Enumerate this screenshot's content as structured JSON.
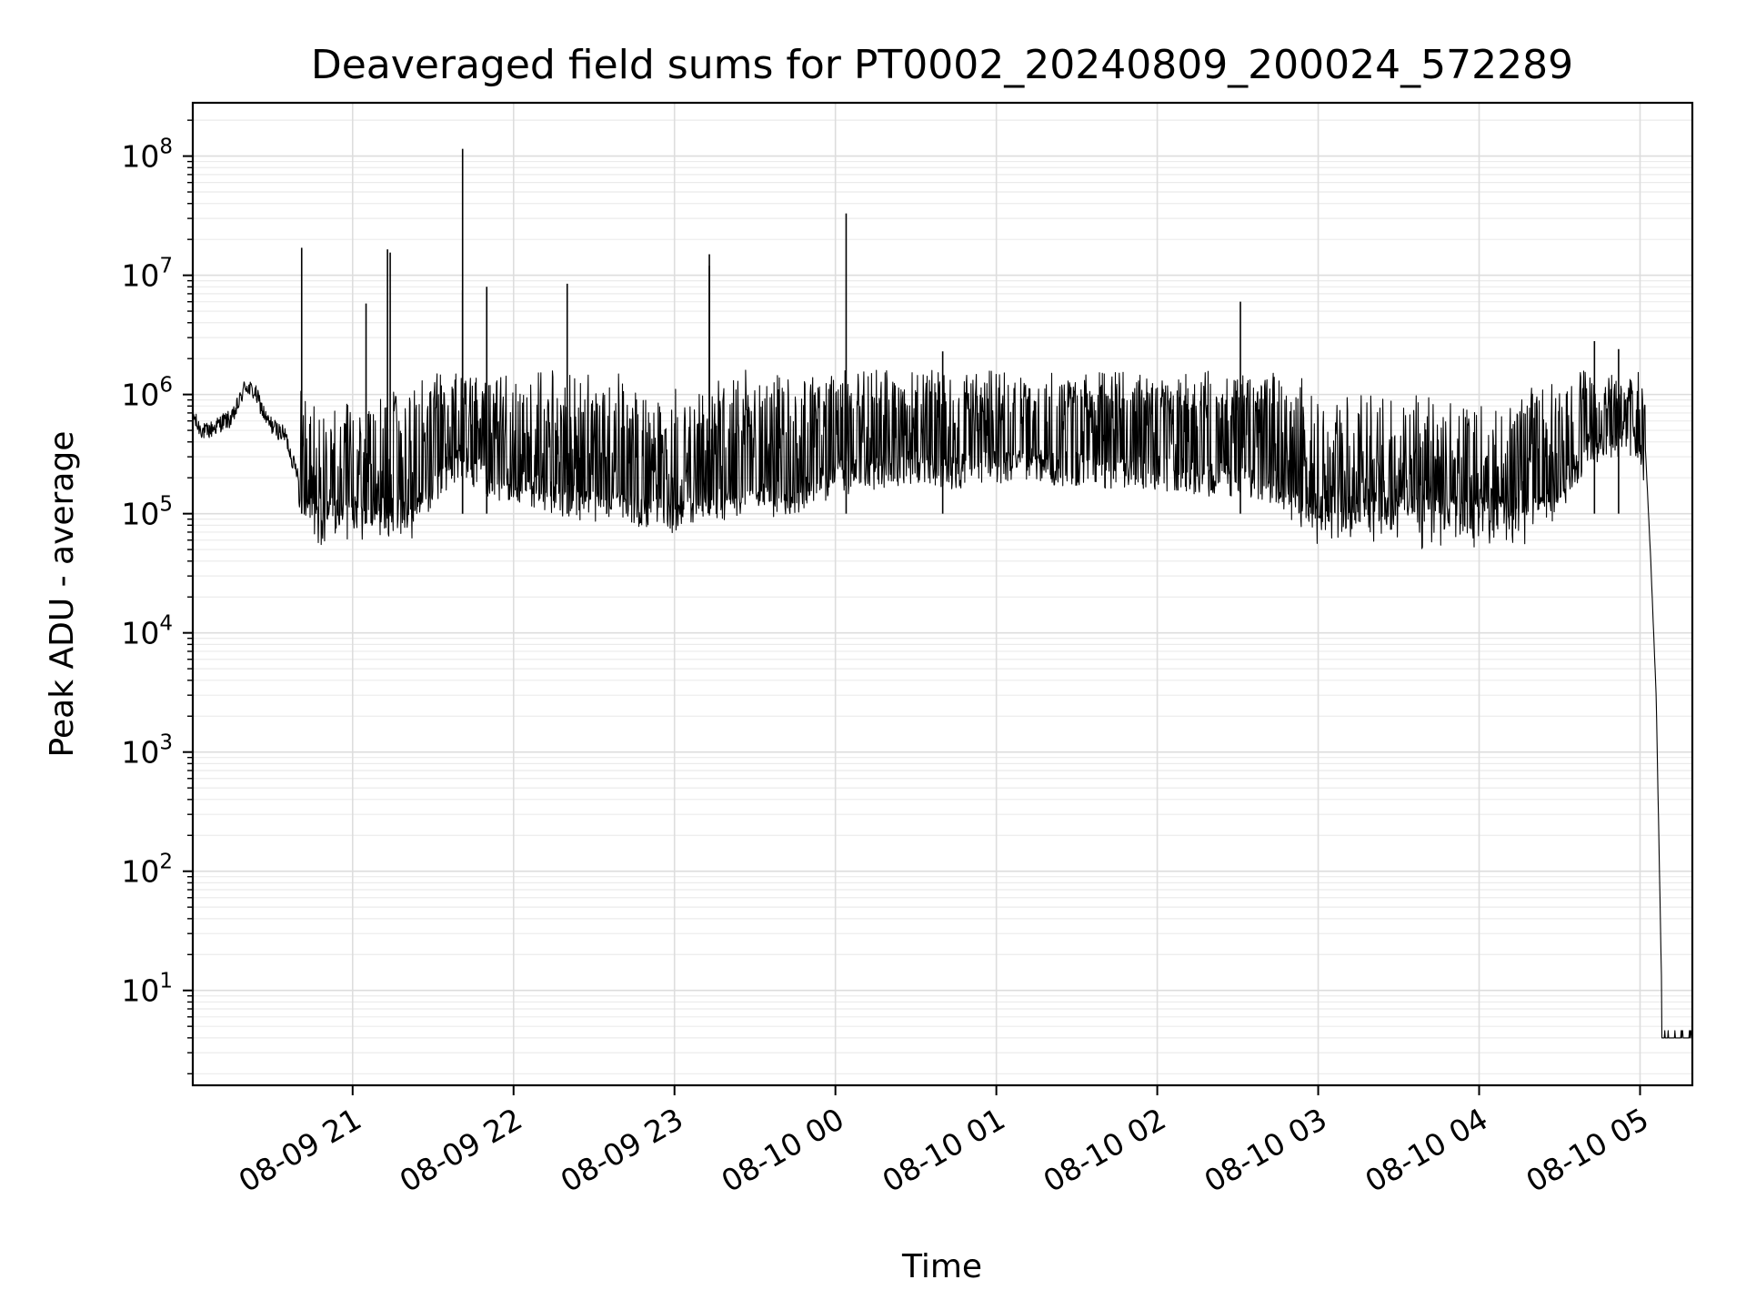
{
  "chart_data": {
    "type": "line",
    "title": "Deaveraged field sums for PT0002_20240809_200024_572289",
    "xlabel": "Time",
    "ylabel": "Peak ADU - average",
    "yscale": "log",
    "ylim": [
      1.6,
      280000000
    ],
    "xlim": [
      "08-09 20:00:24",
      "08-10 05:19:30"
    ],
    "grid": true,
    "line_color": "#000000",
    "x_ticks": [
      {
        "time": "08-09 21:00",
        "label": "08-09 21"
      },
      {
        "time": "08-09 22:00",
        "label": "08-09 22"
      },
      {
        "time": "08-09 23:00",
        "label": "08-09 23"
      },
      {
        "time": "08-10 00:00",
        "label": "08-10 00"
      },
      {
        "time": "08-10 01:00",
        "label": "08-10 01"
      },
      {
        "time": "08-10 02:00",
        "label": "08-10 02"
      },
      {
        "time": "08-10 03:00",
        "label": "08-10 03"
      },
      {
        "time": "08-10 04:00",
        "label": "08-10 04"
      },
      {
        "time": "08-10 05:00",
        "label": "08-10 05"
      }
    ],
    "y_ticks": [
      {
        "value": 10,
        "base": "10",
        "exp": "1"
      },
      {
        "value": 100,
        "base": "10",
        "exp": "2"
      },
      {
        "value": 1000,
        "base": "10",
        "exp": "3"
      },
      {
        "value": 10000,
        "base": "10",
        "exp": "4"
      },
      {
        "value": 100000,
        "base": "10",
        "exp": "5"
      },
      {
        "value": 1000000,
        "base": "10",
        "exp": "6"
      },
      {
        "value": 10000000,
        "base": "10",
        "exp": "7"
      },
      {
        "value": 100000000,
        "base": "10",
        "exp": "8"
      }
    ],
    "series": [
      {
        "x": [
          "08-09 20:00:24",
          "08-09 20:02",
          "08-09 20:05",
          "08-09 20:08",
          "08-09 20:12",
          "08-09 20:15",
          "08-09 20:18",
          "08-09 20:20",
          "08-09 20:24",
          "08-09 20:28",
          "08-09 20:32",
          "08-09 20:35",
          "08-09 20:38",
          "08-09 20:41",
          "08-09 20:44",
          "08-09 20:47",
          "08-09 20:50",
          "08-09 20:53",
          "08-09 20:56",
          "08-09 21:00",
          "08-09 21:05",
          "08-09 21:10",
          "08-09 21:20",
          "08-09 21:30",
          "08-09 21:40",
          "08-09 21:50",
          "08-09 22:00",
          "08-09 22:15",
          "08-09 22:30",
          "08-09 22:45",
          "08-09 23:00",
          "08-09 23:15",
          "08-09 23:30",
          "08-09 23:45",
          "08-10 00:00",
          "08-10 00:15",
          "08-10 00:30",
          "08-10 00:45",
          "08-10 01:00",
          "08-10 01:15",
          "08-10 01:30",
          "08-10 01:45",
          "08-10 02:00",
          "08-10 02:15",
          "08-10 02:30",
          "08-10 02:45",
          "08-10 03:00",
          "08-10 03:15",
          "08-10 03:30",
          "08-10 03:45",
          "08-10 04:00",
          "08-10 04:10",
          "08-10 04:20",
          "08-10 04:30",
          "08-10 04:40",
          "08-10 04:50",
          "08-10 04:55",
          "08-10 05:00",
          "08-10 05:02",
          "08-10 05:04",
          "08-10 05:06",
          "08-10 05:07",
          "08-10 05:08",
          "08-10 05:10",
          "08-10 05:15",
          "08-10 05:19"
        ],
        "y": [
          700000,
          550000,
          480000,
          520000,
          600000,
          620000,
          900000,
          1200000,
          1000000,
          600000,
          500000,
          450000,
          260000,
          200000,
          150000,
          100000,
          90000,
          100000,
          110000,
          100000,
          110000,
          150000,
          120000,
          300000,
          500000,
          350000,
          300000,
          250000,
          200000,
          200000,
          150000,
          220000,
          220000,
          250000,
          350000,
          400000,
          450000,
          400000,
          450000,
          450000,
          420000,
          400000,
          400000,
          350000,
          350000,
          300000,
          120000,
          150000,
          130000,
          120000,
          100000,
          120000,
          150000,
          250000,
          600000,
          700000,
          800000,
          650000,
          350000,
          40000,
          3000,
          200,
          12,
          4,
          4,
          4
        ]
      }
    ],
    "spikes": [
      {
        "time": "08-09 20:41",
        "peak": 17000000
      },
      {
        "time": "08-09 21:05",
        "peak": 5800000
      },
      {
        "time": "08-09 21:13",
        "peak": 16500000
      },
      {
        "time": "08-09 21:14",
        "peak": 15500000
      },
      {
        "time": "08-09 21:41",
        "peak": 115000000
      },
      {
        "time": "08-09 21:41",
        "peak": 7500000
      },
      {
        "time": "08-09 21:50",
        "peak": 8000000
      },
      {
        "time": "08-09 22:20",
        "peak": 8500000
      },
      {
        "time": "08-09 23:13",
        "peak": 15000000
      },
      {
        "time": "08-09 23:13",
        "peak": 12000000
      },
      {
        "time": "08-10 00:04",
        "peak": 33000000
      },
      {
        "time": "08-10 00:40",
        "peak": 2300000
      },
      {
        "time": "08-10 02:31",
        "peak": 6000000
      },
      {
        "time": "08-10 04:43",
        "peak": 2800000
      },
      {
        "time": "08-10 04:52",
        "peak": 2400000
      }
    ]
  }
}
